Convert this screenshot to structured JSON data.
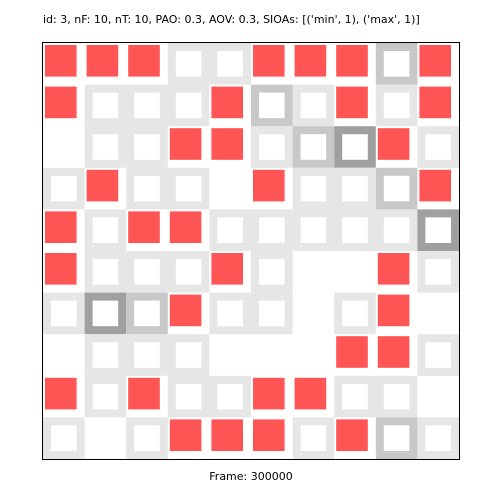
{
  "header": {
    "title": "id: 3, nF: 10, nT: 10, PAO: 0.3, AOV: 0.3, SIOAs: [('min', 1), ('max', 1)]"
  },
  "footer": {
    "frame_label": "Frame: 300000"
  },
  "grid": {
    "rows": 10,
    "cols": 10,
    "agent_color": "#ff5555",
    "trail_colors": [
      "#e6e6e6",
      "#c8c8c8",
      "#a0a0a0"
    ],
    "agents": [
      [
        0,
        0
      ],
      [
        0,
        1
      ],
      [
        0,
        2
      ],
      [
        0,
        5
      ],
      [
        0,
        6
      ],
      [
        0,
        7
      ],
      [
        0,
        9
      ],
      [
        1,
        0
      ],
      [
        1,
        4
      ],
      [
        1,
        7
      ],
      [
        1,
        9
      ],
      [
        2,
        3
      ],
      [
        2,
        4
      ],
      [
        2,
        8
      ],
      [
        3,
        1
      ],
      [
        3,
        5
      ],
      [
        3,
        9
      ],
      [
        4,
        0
      ],
      [
        4,
        2
      ],
      [
        4,
        3
      ],
      [
        5,
        0
      ],
      [
        5,
        4
      ],
      [
        5,
        8
      ],
      [
        6,
        3
      ],
      [
        6,
        8
      ],
      [
        7,
        7
      ],
      [
        7,
        8
      ],
      [
        8,
        0
      ],
      [
        8,
        2
      ],
      [
        8,
        5
      ],
      [
        8,
        6
      ],
      [
        9,
        3
      ],
      [
        9,
        4
      ],
      [
        9,
        5
      ],
      [
        9,
        7
      ]
    ],
    "trails": [
      {
        "cell": [
          0,
          3
        ],
        "level": 0
      },
      {
        "cell": [
          0,
          4
        ],
        "level": 0
      },
      {
        "cell": [
          0,
          8
        ],
        "level": 1
      },
      {
        "cell": [
          1,
          1
        ],
        "level": 0
      },
      {
        "cell": [
          1,
          2
        ],
        "level": 0
      },
      {
        "cell": [
          1,
          3
        ],
        "level": 0
      },
      {
        "cell": [
          1,
          5
        ],
        "level": 1
      },
      {
        "cell": [
          1,
          6
        ],
        "level": 0
      },
      {
        "cell": [
          1,
          8
        ],
        "level": 0
      },
      {
        "cell": [
          2,
          1
        ],
        "level": 0
      },
      {
        "cell": [
          2,
          2
        ],
        "level": 0
      },
      {
        "cell": [
          2,
          5
        ],
        "level": 0
      },
      {
        "cell": [
          2,
          6
        ],
        "level": 1
      },
      {
        "cell": [
          2,
          7
        ],
        "level": 2
      },
      {
        "cell": [
          2,
          9
        ],
        "level": 0
      },
      {
        "cell": [
          3,
          0
        ],
        "level": 0
      },
      {
        "cell": [
          3,
          2
        ],
        "level": 0
      },
      {
        "cell": [
          3,
          3
        ],
        "level": 0
      },
      {
        "cell": [
          3,
          6
        ],
        "level": 0
      },
      {
        "cell": [
          3,
          7
        ],
        "level": 0
      },
      {
        "cell": [
          3,
          8
        ],
        "level": 1
      },
      {
        "cell": [
          4,
          1
        ],
        "level": 0
      },
      {
        "cell": [
          4,
          4
        ],
        "level": 0
      },
      {
        "cell": [
          4,
          5
        ],
        "level": 0
      },
      {
        "cell": [
          4,
          6
        ],
        "level": 0
      },
      {
        "cell": [
          4,
          7
        ],
        "level": 0
      },
      {
        "cell": [
          4,
          8
        ],
        "level": 0
      },
      {
        "cell": [
          4,
          9
        ],
        "level": 2
      },
      {
        "cell": [
          5,
          1
        ],
        "level": 0
      },
      {
        "cell": [
          5,
          2
        ],
        "level": 0
      },
      {
        "cell": [
          5,
          3
        ],
        "level": 0
      },
      {
        "cell": [
          5,
          5
        ],
        "level": 0
      },
      {
        "cell": [
          5,
          9
        ],
        "level": 0
      },
      {
        "cell": [
          6,
          0
        ],
        "level": 0
      },
      {
        "cell": [
          6,
          1
        ],
        "level": 2
      },
      {
        "cell": [
          6,
          2
        ],
        "level": 1
      },
      {
        "cell": [
          6,
          4
        ],
        "level": 0
      },
      {
        "cell": [
          6,
          5
        ],
        "level": 0
      },
      {
        "cell": [
          6,
          7
        ],
        "level": 0
      },
      {
        "cell": [
          7,
          1
        ],
        "level": 0
      },
      {
        "cell": [
          7,
          2
        ],
        "level": 0
      },
      {
        "cell": [
          7,
          3
        ],
        "level": 0
      },
      {
        "cell": [
          7,
          9
        ],
        "level": 0
      },
      {
        "cell": [
          8,
          1
        ],
        "level": 0
      },
      {
        "cell": [
          8,
          3
        ],
        "level": 0
      },
      {
        "cell": [
          8,
          4
        ],
        "level": 0
      },
      {
        "cell": [
          8,
          7
        ],
        "level": 0
      },
      {
        "cell": [
          8,
          8
        ],
        "level": 0
      },
      {
        "cell": [
          9,
          0
        ],
        "level": 0
      },
      {
        "cell": [
          9,
          2
        ],
        "level": 0
      },
      {
        "cell": [
          9,
          6
        ],
        "level": 0
      },
      {
        "cell": [
          9,
          8
        ],
        "level": 1
      },
      {
        "cell": [
          9,
          9
        ],
        "level": 0
      }
    ]
  }
}
